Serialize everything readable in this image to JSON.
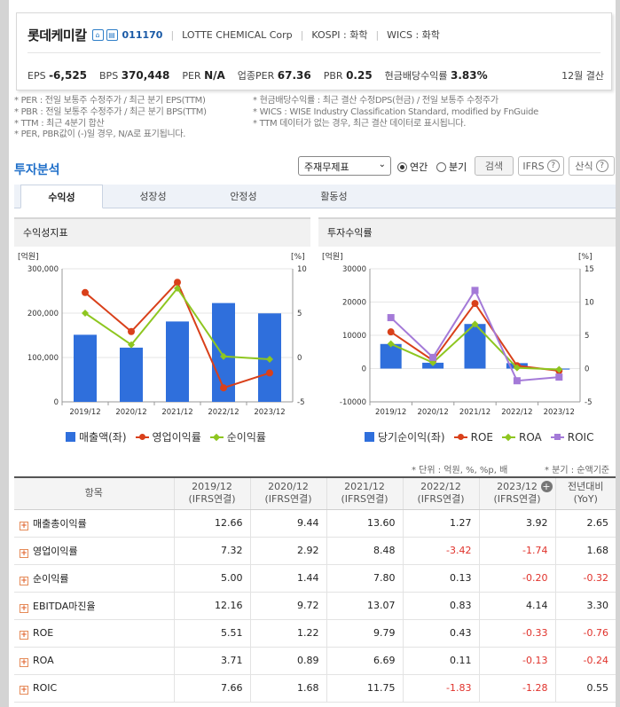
{
  "company": {
    "name": "롯데케미칼",
    "icon_home": "home-icon",
    "icon_report": "report-icon",
    "code": "011170",
    "name_en": "LOTTE CHEMICAL Corp",
    "market": "KOSPI : 화학",
    "wics": "WICS : 화학"
  },
  "metrics": {
    "eps_label": "EPS",
    "eps": "-6,525",
    "bps_label": "BPS",
    "bps": "370,448",
    "per_label": "PER",
    "per": "N/A",
    "ind_per_label": "업종PER",
    "ind_per": "67.36",
    "pbr_label": "PBR",
    "pbr": "0.25",
    "div_label": "현금배당수익률",
    "div": "3.83%",
    "settle": "12월 결산"
  },
  "notes": {
    "left": [
      "* PER : 전일 보통주 수정주가 / 최근 분기 EPS(TTM)",
      "* PBR : 전일 보통주 수정주가 / 최근 분기 BPS(TTM)",
      "* TTM : 최근 4분기 합산",
      "* PER, PBR값이 (-)일 경우, N/A로 표기됩니다."
    ],
    "right": [
      "* 현금배당수익률 : 최근 결산 수정DPS(현금) / 전일 보통주 수정주가",
      "* WICS : WISE Industry Classification Standard, modified by FnGuide",
      "* TTM 데이터가 없는 경우, 최근 결산 데이터로 표시됩니다."
    ]
  },
  "section": {
    "title": "투자분석",
    "select_value": "주재무제표",
    "radio_annual": "연간",
    "radio_quarter": "분기",
    "search_btn": "검색",
    "ifrs_btn": "IFRS",
    "formula_btn": "산식",
    "help_icon": "question-icon"
  },
  "tabs": [
    "수익성",
    "성장성",
    "안정성",
    "활동성"
  ],
  "panels": {
    "left_title": "수익성지표",
    "right_title": "투자수익률"
  },
  "chart_data": [
    {
      "type": "bar",
      "title": "수익성지표",
      "categories": [
        "2019/12",
        "2020/12",
        "2021/12",
        "2022/12",
        "2023/12"
      ],
      "left_unit": "[억원]",
      "right_unit": "[%]",
      "left_ticks": [
        "300,000",
        "200,000",
        "100,000",
        "0"
      ],
      "right_ticks": [
        "10",
        "5",
        "0",
        "-5"
      ],
      "ylim_left": [
        0,
        300000
      ],
      "ylim_right": [
        -5,
        10
      ],
      "colors": {
        "bar": "#2f6fdc",
        "line1": "#d9401a",
        "line2": "#8ec620"
      },
      "series": [
        {
          "name": "매출액(좌)",
          "axis": "left",
          "values": [
            151234,
            122223,
            181205,
            222761,
            199462
          ]
        },
        {
          "name": "영업이익률",
          "axis": "right",
          "values": [
            7.32,
            2.92,
            8.48,
            -3.42,
            -1.74
          ]
        },
        {
          "name": "순이익률",
          "axis": "right",
          "values": [
            5.0,
            1.44,
            7.8,
            0.13,
            -0.2
          ]
        }
      ]
    },
    {
      "type": "bar",
      "title": "투자수익률",
      "categories": [
        "2019/12",
        "2020/12",
        "2021/12",
        "2022/12",
        "2023/12"
      ],
      "left_unit": "[억원]",
      "right_unit": "[%]",
      "left_ticks": [
        "30000",
        "20000",
        "10000",
        "0",
        "-10000"
      ],
      "right_ticks": [
        "15",
        "10",
        "5",
        "0",
        "-5"
      ],
      "ylim_left": [
        -10000,
        30000
      ],
      "ylim_right": [
        -5,
        15
      ],
      "colors": {
        "bar": "#2f6fdc",
        "line1": "#d9401a",
        "line2": "#8ec620",
        "line3": "#a47ad8"
      },
      "series": [
        {
          "name": "당기순이익(좌)",
          "axis": "left",
          "values": [
            7394,
            1759,
            13410,
            1637,
            -300
          ]
        },
        {
          "name": "ROE",
          "axis": "right",
          "values": [
            5.51,
            1.22,
            9.79,
            0.43,
            -0.33
          ]
        },
        {
          "name": "ROA",
          "axis": "right",
          "values": [
            3.71,
            0.89,
            6.69,
            0.11,
            -0.13
          ]
        },
        {
          "name": "ROIC",
          "axis": "right",
          "values": [
            7.66,
            1.68,
            11.75,
            -1.83,
            -1.28
          ]
        }
      ]
    }
  ],
  "table": {
    "unit_note": "* 단위 : 억원, %, %p, 배",
    "right_note": "* 분기 : 순액기준",
    "item_header": "항목",
    "columns": [
      [
        "2019/12",
        "(IFRS연결)"
      ],
      [
        "2020/12",
        "(IFRS연결)"
      ],
      [
        "2021/12",
        "(IFRS연결)"
      ],
      [
        "2022/12",
        "(IFRS연결)"
      ],
      [
        "2023/12",
        "(IFRS연결)"
      ],
      [
        "전년대비",
        "(YoY)"
      ]
    ],
    "rows": [
      {
        "label": "매출총이익률",
        "values": [
          "12.66",
          "9.44",
          "13.60",
          "1.27",
          "3.92",
          "2.65"
        ]
      },
      {
        "label": "영업이익률",
        "values": [
          "7.32",
          "2.92",
          "8.48",
          "-3.42",
          "-1.74",
          "1.68"
        ]
      },
      {
        "label": "순이익률",
        "values": [
          "5.00",
          "1.44",
          "7.80",
          "0.13",
          "-0.20",
          "-0.32"
        ]
      },
      {
        "label": "EBITDA마진율",
        "values": [
          "12.16",
          "9.72",
          "13.07",
          "0.83",
          "4.14",
          "3.30"
        ]
      },
      {
        "label": "ROE",
        "values": [
          "5.51",
          "1.22",
          "9.79",
          "0.43",
          "-0.33",
          "-0.76"
        ]
      },
      {
        "label": "ROA",
        "values": [
          "3.71",
          "0.89",
          "6.69",
          "0.11",
          "-0.13",
          "-0.24"
        ]
      },
      {
        "label": "ROIC",
        "values": [
          "7.66",
          "1.68",
          "11.75",
          "-1.83",
          "-1.28",
          "0.55"
        ]
      }
    ]
  }
}
